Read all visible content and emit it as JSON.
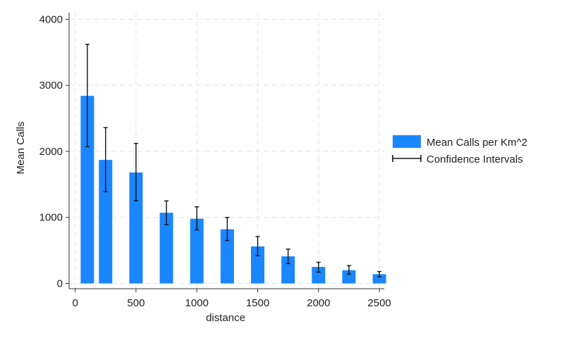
{
  "chart_data": {
    "type": "bar",
    "title": "",
    "xlabel": "distance",
    "ylabel": "Mean Calls",
    "xlim": [
      -50,
      2540
    ],
    "ylim": [
      -80,
      4100
    ],
    "xticks": [
      0,
      500,
      1000,
      1500,
      2000,
      2500
    ],
    "yticks": [
      0,
      1000,
      2000,
      3000,
      4000
    ],
    "grid": true,
    "legend_position": "right",
    "colors": {
      "bar": "#1a86ff",
      "error_bar": "#111111",
      "grid": "#e4e4e4",
      "axis": "#333333"
    },
    "bar_width": 110,
    "series": [
      {
        "name": "Mean Calls per Km^2",
        "kind": "bar",
        "x": [
          100,
          250,
          500,
          750,
          1000,
          1250,
          1500,
          1750,
          2000,
          2250,
          2500
        ],
        "values": [
          2840,
          1870,
          1680,
          1070,
          980,
          820,
          560,
          410,
          250,
          200,
          140
        ]
      },
      {
        "name": "Confidence Intervals",
        "kind": "errorbar",
        "x": [
          100,
          250,
          500,
          750,
          1000,
          1250,
          1500,
          1750,
          2000,
          2250,
          2500
        ],
        "lower": [
          2070,
          1390,
          1250,
          890,
          810,
          650,
          420,
          300,
          170,
          140,
          100
        ],
        "upper": [
          3620,
          2360,
          2120,
          1250,
          1160,
          1000,
          710,
          520,
          320,
          270,
          180
        ]
      }
    ]
  }
}
